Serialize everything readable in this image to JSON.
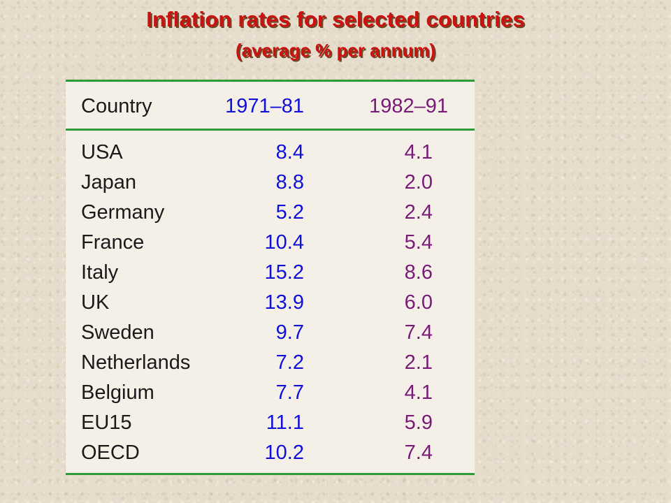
{
  "title": "Inflation rates for selected countries",
  "subtitle": "(average % per annum)",
  "colors": {
    "title": "#cc1111",
    "rule": "#2e9b34",
    "country_text": "#1a1a1a",
    "col1_text": "#1010d8",
    "col2_text": "#7a1a78"
  },
  "table": {
    "headers": [
      "Country",
      "1971–81",
      "1982–91"
    ],
    "rows": [
      [
        "USA",
        "8.4",
        "4.1"
      ],
      [
        "Japan",
        "8.8",
        "2.0"
      ],
      [
        "Germany",
        "5.2",
        "2.4"
      ],
      [
        "France",
        "10.4",
        "5.4"
      ],
      [
        "Italy",
        "15.2",
        "8.6"
      ],
      [
        "UK",
        "13.9",
        "6.0"
      ],
      [
        "Sweden",
        "9.7",
        "7.4"
      ],
      [
        "Netherlands",
        "7.2",
        "2.1"
      ],
      [
        "Belgium",
        "7.7",
        "4.1"
      ],
      [
        "EU15",
        "11.1",
        "5.9"
      ],
      [
        "OECD",
        "10.2",
        "7.4"
      ]
    ]
  }
}
